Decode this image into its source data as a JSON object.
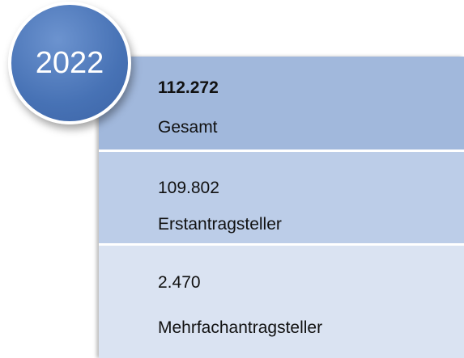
{
  "badge": "2022",
  "rows": [
    {
      "value": "112.272",
      "label": "Gesamt"
    },
    {
      "value": "109.802",
      "label": "Erstantragsteller"
    },
    {
      "value": "2.470",
      "label": "Mehrfachantragsteller"
    }
  ]
}
